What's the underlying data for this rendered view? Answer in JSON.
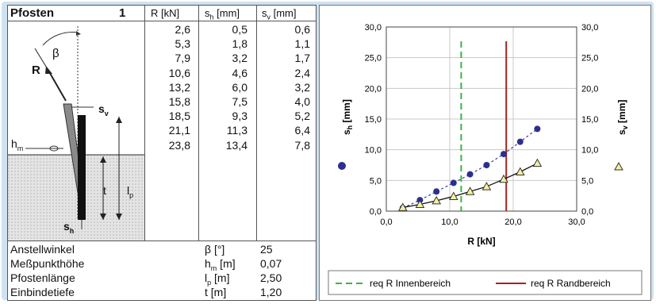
{
  "table": {
    "title": "Pfosten",
    "title_num": "1",
    "headers": {
      "r": "R [kN]",
      "sh": "s",
      "sh_sub": "h",
      "sh_unit": " [mm]",
      "sv": "s",
      "sv_sub": "v",
      "sv_unit": " [mm]"
    },
    "rows": [
      {
        "r": "2,6",
        "sh": "0,5",
        "sv": "0,6"
      },
      {
        "r": "5,3",
        "sh": "1,8",
        "sv": "1,1"
      },
      {
        "r": "7,9",
        "sh": "3,2",
        "sv": "1,7"
      },
      {
        "r": "10,6",
        "sh": "4,6",
        "sv": "2,4"
      },
      {
        "r": "13,2",
        "sh": "6,0",
        "sv": "3,2"
      },
      {
        "r": "15,8",
        "sh": "7,5",
        "sv": "4,0"
      },
      {
        "r": "18,5",
        "sh": "9,3",
        "sv": "5,2"
      },
      {
        "r": "21,1",
        "sh": "11,3",
        "sv": "6,4"
      },
      {
        "r": "23,8",
        "sh": "13,4",
        "sv": "7,8"
      }
    ],
    "params": [
      {
        "label": "Anstellwinkel",
        "sym": "β [°]",
        "value": "25"
      },
      {
        "label": "Meßpunkthöhe",
        "sym": "h",
        "sym_sub": "m",
        "sym_unit": " [m]",
        "value": "0,07"
      },
      {
        "label": "Pfostenlänge",
        "sym": "l",
        "sym_sub": "p",
        "sym_unit": " [m]",
        "value": "2,50"
      },
      {
        "label": "Einbindetiefe",
        "sym": "t [m]",
        "value": "1,20"
      }
    ]
  },
  "sketch": {
    "beta": "β",
    "R": "R",
    "sv": "s",
    "sv_sub": "v",
    "hm": "h",
    "hm_sub": "m",
    "t": "t",
    "lp": "l",
    "lp_sub": "p",
    "sh": "s",
    "sh_sub": "h"
  },
  "chart_data": {
    "type": "scatter",
    "xlabel": "R [kN]",
    "ylabel_left": "s",
    "ylabel_left_sub": "h",
    "ylabel_left_unit": " [mm]",
    "ylabel_right": "s",
    "ylabel_right_sub": "v",
    "ylabel_right_unit": " [mm]",
    "xlim": [
      0,
      30
    ],
    "ylim": [
      0,
      30
    ],
    "y2lim": [
      0,
      30
    ],
    "xticks": [
      "0,0",
      "10,0",
      "20,0",
      "30,0"
    ],
    "yticks": [
      "0,0",
      "5,0",
      "10,0",
      "15,0",
      "20,0",
      "25,0",
      "30,0"
    ],
    "grid": true,
    "series": [
      {
        "marker": "circle",
        "color": "#2b2f8f",
        "x": [
          2.6,
          5.3,
          7.9,
          10.6,
          13.2,
          15.8,
          18.5,
          21.1,
          23.8
        ],
        "y": [
          0.5,
          1.8,
          3.2,
          4.6,
          6.0,
          7.5,
          9.3,
          11.3,
          13.4
        ]
      },
      {
        "marker": "triangle",
        "color": "#f3f0a0",
        "x": [
          2.6,
          5.3,
          7.9,
          10.6,
          13.2,
          15.8,
          18.5,
          21.1,
          23.8
        ],
        "y": [
          0.6,
          1.1,
          1.7,
          2.4,
          3.2,
          4.0,
          5.2,
          6.4,
          7.8
        ]
      }
    ],
    "vlines": [
      {
        "name": "req R Innenbereich",
        "x": 11.8,
        "color": "#3fb04a",
        "style": "dashed"
      },
      {
        "name": "req R Randbereich",
        "x": 18.9,
        "color": "#a3241f",
        "style": "solid"
      }
    ],
    "legend_position": "bottom"
  }
}
